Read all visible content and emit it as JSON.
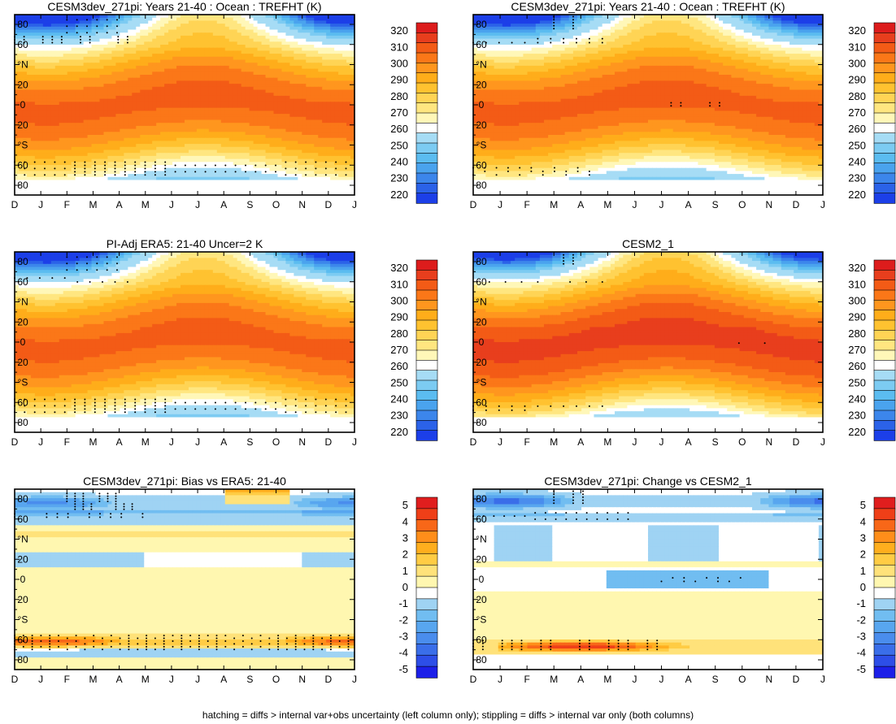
{
  "colors": {
    "abs": [
      "#1c3fe8",
      "#2b62e8",
      "#3c86eb",
      "#4aa3ee",
      "#5bbcf0",
      "#7ccbf2",
      "#a6dcf5",
      "#ffffff",
      "#fff7b8",
      "#ffe680",
      "#ffd455",
      "#ffc230",
      "#ffad1a",
      "#ff961e",
      "#fb7718",
      "#f35b16",
      "#e83e1d",
      "#dd1c1c"
    ],
    "diff": [
      "#1c1fe8",
      "#2d4ee8",
      "#3a6ee9",
      "#4a8ded",
      "#58a6ef",
      "#71bdf1",
      "#9fd3f3",
      "#ffffff",
      "#fff7b0",
      "#ffe27a",
      "#ffcc44",
      "#ffae1e",
      "#ff8e1a",
      "#f86718",
      "#ef3f18",
      "#e01e1e"
    ],
    "stipple": "#000000",
    "frame": "#000000"
  },
  "footnote": "hatching = diffs > internal var+obs uncertainty (left column only); stippling = diffs > internal var only (both columns)",
  "chart_data": [
    {
      "type": "heatmap",
      "id": "p1",
      "kind": "abs",
      "title": "CESM3dev_271pi: Years 21-40 : Ocean : TREFHT (K)",
      "x_ticks": [
        "D",
        "J",
        "F",
        "M",
        "A",
        "M",
        "J",
        "J",
        "A",
        "S",
        "O",
        "N",
        "D",
        "J"
      ],
      "y_ticks": [
        "80",
        "60",
        "°N",
        "20",
        "0",
        "20",
        "°S",
        "60",
        "80"
      ],
      "ylim": [
        -90,
        90
      ],
      "levels": [
        220,
        225,
        230,
        235,
        240,
        245,
        250,
        260,
        265,
        270,
        275,
        280,
        285,
        290,
        295,
        300,
        305,
        310,
        315,
        320
      ],
      "colorbar_labels": [
        "320",
        "310",
        "300",
        "290",
        "280",
        "270",
        "260",
        "250",
        "240",
        "230",
        "220"
      ],
      "tropical_max": 300,
      "tropical_shift": 0,
      "stippled_regions": [
        "NH polar Feb-Apr",
        "NH 65N",
        "SH 55-70S"
      ]
    },
    {
      "type": "heatmap",
      "id": "p2",
      "kind": "abs",
      "title": "CESM3dev_271pi: Years 21-40 : Ocean : TREFHT (K)",
      "x_ticks": [
        "D",
        "J",
        "F",
        "M",
        "A",
        "M",
        "J",
        "J",
        "A",
        "S",
        "O",
        "N",
        "D",
        "J"
      ],
      "y_ticks": [
        "80",
        "60",
        "°N",
        "20",
        "0",
        "20",
        "°S",
        "60",
        "80"
      ],
      "ylim": [
        -90,
        90
      ],
      "levels": [
        220,
        225,
        230,
        235,
        240,
        245,
        250,
        260,
        265,
        270,
        275,
        280,
        285,
        290,
        295,
        300,
        305,
        310,
        315,
        320
      ],
      "colorbar_labels": [
        "320",
        "310",
        "300",
        "290",
        "280",
        "270",
        "260",
        "250",
        "240",
        "230",
        "220"
      ],
      "tropical_max": 300,
      "tropical_shift": 0,
      "stippled_regions": [
        "NH polar Mar-Apr",
        "equator Jul-Sep",
        "SH 65S"
      ]
    },
    {
      "type": "heatmap",
      "id": "p3",
      "kind": "abs",
      "title": "PI-Adj ERA5: 21-40 Uncer=2 K",
      "x_ticks": [
        "D",
        "J",
        "F",
        "M",
        "A",
        "M",
        "J",
        "J",
        "A",
        "S",
        "O",
        "N",
        "D",
        "J"
      ],
      "y_ticks": [
        "80",
        "60",
        "°N",
        "20",
        "0",
        "20",
        "°S",
        "60",
        "80"
      ],
      "ylim": [
        -90,
        90
      ],
      "levels": [
        220,
        225,
        230,
        235,
        240,
        245,
        250,
        260,
        265,
        270,
        275,
        280,
        285,
        290,
        295,
        300,
        305,
        310,
        315,
        320
      ],
      "colorbar_labels": [
        "320",
        "310",
        "300",
        "290",
        "280",
        "270",
        "260",
        "250",
        "240",
        "230",
        "220"
      ],
      "tropical_max": 300,
      "tropical_shift": 0,
      "stippled_regions": [
        "NH polar Feb-Apr",
        "SH 55-70S"
      ]
    },
    {
      "type": "heatmap",
      "id": "p4",
      "kind": "abs",
      "title": "CESM2_1",
      "x_ticks": [
        "D",
        "J",
        "F",
        "M",
        "A",
        "M",
        "J",
        "J",
        "A",
        "S",
        "O",
        "N",
        "D",
        "J"
      ],
      "y_ticks": [
        "80",
        "60",
        "°N",
        "20",
        "0",
        "20",
        "°S",
        "60",
        "80"
      ],
      "ylim": [
        -90,
        90
      ],
      "levels": [
        220,
        225,
        230,
        235,
        240,
        245,
        250,
        260,
        265,
        270,
        275,
        280,
        285,
        290,
        295,
        300,
        305,
        310,
        315,
        320
      ],
      "colorbar_labels": [
        "320",
        "310",
        "300",
        "290",
        "280",
        "270",
        "260",
        "250",
        "240",
        "230",
        "220"
      ],
      "tropical_max": 305,
      "tropical_shift": 0,
      "stippled_regions": [
        "NH polar Mar-Apr",
        "equator Jul-Nov",
        "SH 65S"
      ]
    },
    {
      "type": "heatmap",
      "id": "p5",
      "kind": "diff",
      "title": "CESM3dev_271pi: Bias vs ERA5: 21-40",
      "x_ticks": [
        "D",
        "J",
        "F",
        "M",
        "A",
        "M",
        "J",
        "J",
        "A",
        "S",
        "O",
        "N",
        "D",
        "J"
      ],
      "y_ticks": [
        "80",
        "60",
        "°N",
        "20",
        "0",
        "20",
        "°S",
        "60",
        "80"
      ],
      "ylim": [
        -90,
        90
      ],
      "levels": [
        -5,
        -4.5,
        -4,
        -3.5,
        -3,
        -2.5,
        -2,
        -1,
        0,
        1,
        2,
        2.5,
        3,
        3.5,
        4,
        4.5,
        5
      ],
      "colorbar_labels": [
        "5",
        "4",
        "3",
        "2",
        "1",
        "0",
        "-1",
        "-2",
        "-3",
        "-4",
        "-5"
      ],
      "stippled_regions": [
        "NH 65-85N",
        "SH 55-70S"
      ]
    },
    {
      "type": "heatmap",
      "id": "p6",
      "kind": "diff",
      "title": "CESM3dev_271pi: Change vs CESM2_1",
      "x_ticks": [
        "D",
        "J",
        "F",
        "M",
        "A",
        "M",
        "J",
        "J",
        "A",
        "S",
        "O",
        "N",
        "D",
        "J"
      ],
      "y_ticks": [
        "80",
        "60",
        "°N",
        "20",
        "0",
        "20",
        "°S",
        "60",
        "80"
      ],
      "ylim": [
        -90,
        90
      ],
      "levels": [
        -5,
        -4.5,
        -4,
        -3.5,
        -3,
        -2.5,
        -2,
        -1,
        0,
        1,
        2,
        2.5,
        3,
        3.5,
        4,
        4.5,
        5
      ],
      "colorbar_labels": [
        "5",
        "4",
        "3",
        "2",
        "1",
        "0",
        "-1",
        "-2",
        "-3",
        "-4",
        "-5"
      ],
      "stippled_regions": [
        "NH 60-85N",
        "equator Jul-Oct",
        "SH 65-70S"
      ]
    }
  ]
}
